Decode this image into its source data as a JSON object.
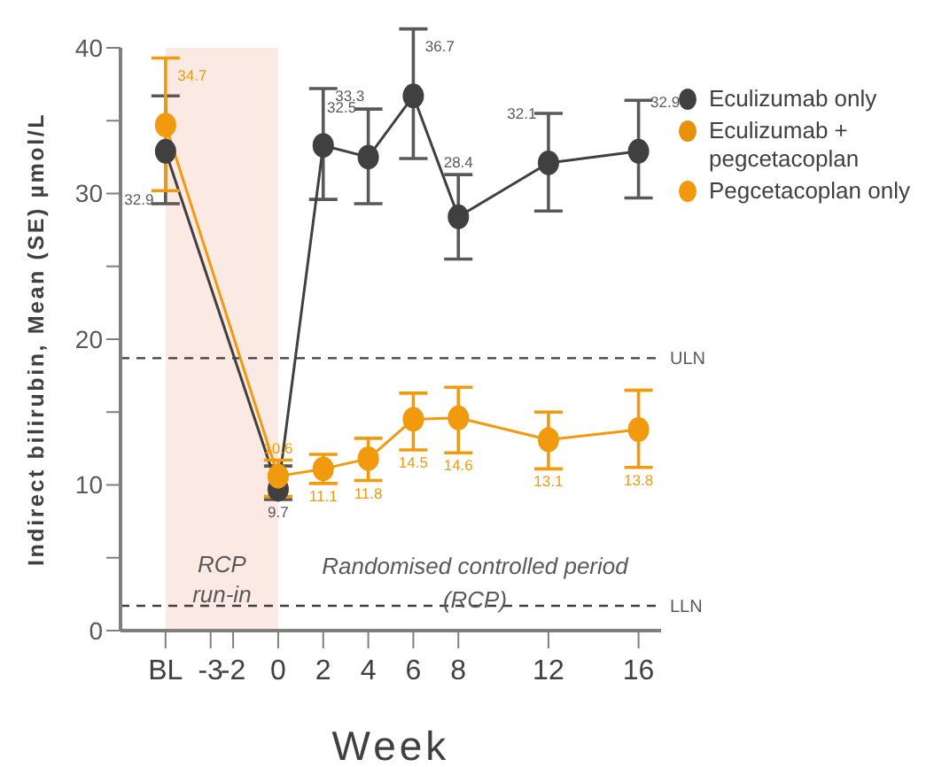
{
  "chart_data": {
    "type": "line",
    "ylabel": "Indirect bilirubin, Mean (SE) µmol/L",
    "xlabel": "Week",
    "x": [
      -5,
      0,
      2,
      4,
      6,
      8,
      12,
      16
    ],
    "xlim": [
      -7,
      17
    ],
    "xticks": [
      {
        "value": -5,
        "label": "BL"
      },
      -3,
      -2,
      0,
      2,
      4,
      6,
      8,
      12,
      16
    ],
    "ylim": [
      0,
      40
    ],
    "yticks": [
      0,
      {
        "value": 5,
        "label": null
      },
      10,
      {
        "value": 15,
        "label": null
      },
      20,
      {
        "value": 25,
        "label": null
      },
      30,
      {
        "value": 35,
        "label": null
      },
      40
    ],
    "series": [
      {
        "name": "Eculizumab only",
        "color": "#404040",
        "values": [
          32.9,
          9.7,
          33.3,
          32.5,
          36.7,
          28.4,
          32.1,
          32.9
        ],
        "errors": [
          [
            29.3,
            36.7
          ],
          [
            9.0,
            11.3
          ],
          [
            29.6,
            37.2
          ],
          [
            29.3,
            35.8
          ],
          [
            32.4,
            41.3
          ],
          [
            25.5,
            31.3
          ],
          [
            28.8,
            35.5
          ],
          [
            29.7,
            36.4
          ]
        ],
        "value_labels": [
          "32.9",
          "9.7",
          "33.3",
          "32.5",
          "36.7",
          "28.4",
          "32.1",
          "32.9"
        ]
      },
      {
        "name": "Eculizumab + pegcetacoplan",
        "color": "#e8900a",
        "values": [
          null,
          null,
          null,
          null,
          null,
          null,
          null,
          null
        ]
      },
      {
        "name": "Pegcetacoplan only",
        "color": "#f29a0e",
        "values": [
          34.7,
          10.6,
          11.1,
          11.8,
          14.5,
          14.6,
          13.1,
          13.8
        ],
        "errors": [
          [
            30.2,
            39.3
          ],
          [
            9.2,
            11.7
          ],
          [
            10.1,
            12.1
          ],
          [
            10.3,
            13.2
          ],
          [
            12.4,
            16.3
          ],
          [
            12.2,
            16.7
          ],
          [
            11.1,
            15.0
          ],
          [
            11.2,
            16.5
          ]
        ],
        "value_labels": [
          "34.7",
          "10.6",
          "11.1",
          "11.8",
          "14.5",
          "14.6",
          "13.1",
          "13.8"
        ]
      }
    ],
    "marker": "circle",
    "line_style": "solid",
    "legend": "right",
    "grid": false,
    "bands": [
      {
        "axis": "x",
        "from": -5,
        "to": 0,
        "label": "RCP run-in",
        "color": "#fbe9e4"
      }
    ],
    "ref_lines": [
      {
        "axis": "y",
        "value": 18.7,
        "label": "ULN",
        "line_style": "dashed"
      },
      {
        "axis": "y",
        "value": 1.7,
        "label": "LLN",
        "line_style": "dashed"
      }
    ],
    "annotations": [
      "Randomised controlled period (RCP)"
    ]
  }
}
